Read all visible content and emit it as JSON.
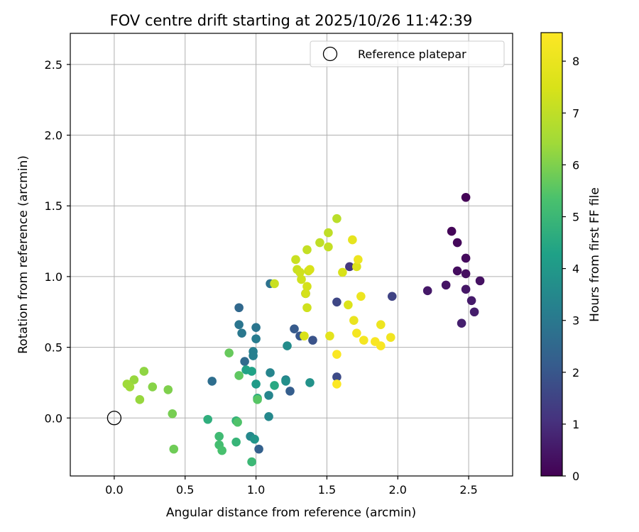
{
  "chart_data": {
    "type": "scatter",
    "title": "FOV centre drift starting at 2025/10/26 11:42:39",
    "xlabel": "Angular distance from reference (arcmin)",
    "ylabel": "Rotation from reference (arcmin)",
    "xlim": [
      -0.31,
      2.81
    ],
    "ylim": [
      -0.41,
      2.72
    ],
    "xticks": [
      0.0,
      0.5,
      1.0,
      1.5,
      2.0,
      2.5
    ],
    "xtick_labels": [
      "0.0",
      "0.5",
      "1.0",
      "1.5",
      "2.0",
      "2.5"
    ],
    "yticks": [
      0.0,
      0.5,
      1.0,
      1.5,
      2.0,
      2.5
    ],
    "ytick_labels": [
      "0.0",
      "0.5",
      "1.0",
      "1.5",
      "2.0",
      "2.5"
    ],
    "grid": true,
    "legend": {
      "position": "top-right",
      "entries": [
        "Reference platepar"
      ]
    },
    "reference_point": {
      "x": 0.0,
      "y": 0.0,
      "label": "Reference platepar"
    },
    "colorbar": {
      "label": "Hours from first FF file",
      "range": [
        0,
        8.55
      ],
      "ticks": [
        0,
        1,
        2,
        3,
        4,
        5,
        6,
        7,
        8
      ],
      "tick_labels": [
        "0",
        "1",
        "2",
        "3",
        "4",
        "5",
        "6",
        "7",
        "8"
      ],
      "colormap": "viridis"
    },
    "points": [
      {
        "x": 2.48,
        "y": 1.56,
        "c": 0.05
      },
      {
        "x": 2.38,
        "y": 1.32,
        "c": 0.1
      },
      {
        "x": 2.42,
        "y": 1.24,
        "c": 0.15
      },
      {
        "x": 2.48,
        "y": 1.13,
        "c": 0.2
      },
      {
        "x": 2.42,
        "y": 1.04,
        "c": 0.25
      },
      {
        "x": 2.48,
        "y": 1.02,
        "c": 0.3
      },
      {
        "x": 2.58,
        "y": 0.97,
        "c": 0.35
      },
      {
        "x": 2.34,
        "y": 0.94,
        "c": 0.4
      },
      {
        "x": 2.48,
        "y": 0.91,
        "c": 0.45
      },
      {
        "x": 2.21,
        "y": 0.9,
        "c": 0.5
      },
      {
        "x": 2.52,
        "y": 0.83,
        "c": 0.55
      },
      {
        "x": 2.54,
        "y": 0.75,
        "c": 0.6
      },
      {
        "x": 2.45,
        "y": 0.67,
        "c": 0.65
      },
      {
        "x": 1.66,
        "y": 1.07,
        "c": 1.2
      },
      {
        "x": 1.96,
        "y": 0.86,
        "c": 1.5
      },
      {
        "x": 1.57,
        "y": 0.82,
        "c": 1.6
      },
      {
        "x": 1.57,
        "y": 0.29,
        "c": 1.7
      },
      {
        "x": 1.35,
        "y": 0.88,
        "c": 1.8
      },
      {
        "x": 1.4,
        "y": 0.55,
        "c": 1.9
      },
      {
        "x": 1.31,
        "y": 0.58,
        "c": 2.0
      },
      {
        "x": 1.27,
        "y": 0.63,
        "c": 2.1
      },
      {
        "x": 1.24,
        "y": 0.19,
        "c": 2.2
      },
      {
        "x": 1.02,
        "y": -0.22,
        "c": 2.3
      },
      {
        "x": 0.88,
        "y": 0.78,
        "c": 2.5
      },
      {
        "x": 0.92,
        "y": 0.4,
        "c": 2.6
      },
      {
        "x": 0.69,
        "y": 0.26,
        "c": 2.7
      },
      {
        "x": 1.1,
        "y": 0.95,
        "c": 2.8
      },
      {
        "x": 0.88,
        "y": 0.66,
        "c": 2.9
      },
      {
        "x": 1.0,
        "y": 0.64,
        "c": 2.9
      },
      {
        "x": 0.9,
        "y": 0.6,
        "c": 3.0
      },
      {
        "x": 1.0,
        "y": 0.56,
        "c": 3.1
      },
      {
        "x": 0.98,
        "y": 0.47,
        "c": 3.2
      },
      {
        "x": 0.98,
        "y": 0.44,
        "c": 3.2
      },
      {
        "x": 1.21,
        "y": 0.27,
        "c": 3.3
      },
      {
        "x": 1.1,
        "y": 0.32,
        "c": 3.4
      },
      {
        "x": 1.09,
        "y": 0.16,
        "c": 3.4
      },
      {
        "x": 1.09,
        "y": 0.01,
        "c": 3.5
      },
      {
        "x": 0.96,
        "y": -0.13,
        "c": 3.5
      },
      {
        "x": 1.22,
        "y": 0.51,
        "c": 3.6
      },
      {
        "x": 1.21,
        "y": 0.26,
        "c": 3.7
      },
      {
        "x": 1.38,
        "y": 0.25,
        "c": 3.8
      },
      {
        "x": 0.99,
        "y": -0.15,
        "c": 3.9
      },
      {
        "x": 1.0,
        "y": 0.24,
        "c": 4.1
      },
      {
        "x": 0.93,
        "y": 0.34,
        "c": 4.3
      },
      {
        "x": 0.97,
        "y": 0.33,
        "c": 4.3
      },
      {
        "x": 1.13,
        "y": 0.23,
        "c": 4.5
      },
      {
        "x": 1.01,
        "y": 0.14,
        "c": 4.6
      },
      {
        "x": 0.66,
        "y": -0.01,
        "c": 4.7
      },
      {
        "x": 0.86,
        "y": -0.02,
        "c": 4.8
      },
      {
        "x": 0.86,
        "y": -0.17,
        "c": 4.9
      },
      {
        "x": 0.97,
        "y": -0.31,
        "c": 5.0
      },
      {
        "x": 0.74,
        "y": -0.13,
        "c": 5.1
      },
      {
        "x": 0.74,
        "y": -0.19,
        "c": 5.2
      },
      {
        "x": 0.76,
        "y": -0.23,
        "c": 5.3
      },
      {
        "x": 0.87,
        "y": -0.03,
        "c": 5.4
      },
      {
        "x": 1.01,
        "y": 0.13,
        "c": 5.5
      },
      {
        "x": 0.88,
        "y": 0.3,
        "c": 5.6
      },
      {
        "x": 0.81,
        "y": 0.46,
        "c": 5.7
      },
      {
        "x": 0.42,
        "y": -0.22,
        "c": 5.8
      },
      {
        "x": 0.41,
        "y": 0.03,
        "c": 5.9
      },
      {
        "x": 0.38,
        "y": 0.2,
        "c": 6.0
      },
      {
        "x": 0.27,
        "y": 0.22,
        "c": 6.1
      },
      {
        "x": 0.21,
        "y": 0.33,
        "c": 6.2
      },
      {
        "x": 0.18,
        "y": 0.13,
        "c": 6.3
      },
      {
        "x": 0.14,
        "y": 0.27,
        "c": 6.3
      },
      {
        "x": 0.09,
        "y": 0.24,
        "c": 6.4
      },
      {
        "x": 0.11,
        "y": 0.22,
        "c": 6.4
      },
      {
        "x": 1.57,
        "y": 1.41,
        "c": 6.9
      },
      {
        "x": 1.51,
        "y": 1.31,
        "c": 7.0
      },
      {
        "x": 1.45,
        "y": 1.24,
        "c": 7.0
      },
      {
        "x": 1.36,
        "y": 1.19,
        "c": 7.1
      },
      {
        "x": 1.51,
        "y": 1.21,
        "c": 7.1
      },
      {
        "x": 1.28,
        "y": 1.12,
        "c": 7.2
      },
      {
        "x": 1.29,
        "y": 1.05,
        "c": 7.2
      },
      {
        "x": 1.31,
        "y": 1.03,
        "c": 7.3
      },
      {
        "x": 1.37,
        "y": 1.04,
        "c": 7.3
      },
      {
        "x": 1.32,
        "y": 0.98,
        "c": 7.3
      },
      {
        "x": 1.13,
        "y": 0.95,
        "c": 7.2
      },
      {
        "x": 1.36,
        "y": 0.93,
        "c": 7.4
      },
      {
        "x": 1.35,
        "y": 0.88,
        "c": 7.4
      },
      {
        "x": 1.36,
        "y": 0.78,
        "c": 7.3
      },
      {
        "x": 1.34,
        "y": 0.58,
        "c": 7.5
      },
      {
        "x": 1.61,
        "y": 1.03,
        "c": 7.5
      },
      {
        "x": 1.71,
        "y": 1.07,
        "c": 7.6
      },
      {
        "x": 1.65,
        "y": 0.8,
        "c": 7.6
      },
      {
        "x": 1.38,
        "y": 1.05,
        "c": 7.5
      },
      {
        "x": 1.52,
        "y": 0.58,
        "c": 7.8
      },
      {
        "x": 1.68,
        "y": 1.26,
        "c": 7.9
      },
      {
        "x": 1.69,
        "y": 0.69,
        "c": 8.0
      },
      {
        "x": 1.72,
        "y": 1.12,
        "c": 8.1
      },
      {
        "x": 1.74,
        "y": 0.86,
        "c": 8.1
      },
      {
        "x": 1.88,
        "y": 0.66,
        "c": 8.1
      },
      {
        "x": 1.95,
        "y": 0.57,
        "c": 8.2
      },
      {
        "x": 1.71,
        "y": 0.6,
        "c": 8.3
      },
      {
        "x": 1.76,
        "y": 0.55,
        "c": 8.3
      },
      {
        "x": 1.84,
        "y": 0.54,
        "c": 8.4
      },
      {
        "x": 1.88,
        "y": 0.51,
        "c": 8.4
      },
      {
        "x": 1.57,
        "y": 0.45,
        "c": 8.45
      },
      {
        "x": 1.57,
        "y": 0.24,
        "c": 8.5
      }
    ]
  }
}
